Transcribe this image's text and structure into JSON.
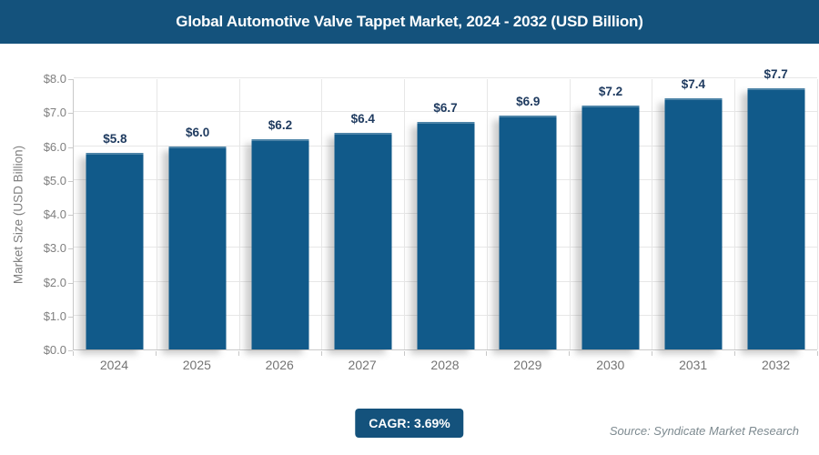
{
  "header": {
    "title": "Global Automotive Valve Tappet Market, 2024 - 2032 (USD Billion)"
  },
  "chart_data": {
    "type": "bar",
    "title": "Global Automotive Valve Tappet Market, 2024 - 2032 (USD Billion)",
    "categories": [
      "2024",
      "2025",
      "2026",
      "2027",
      "2028",
      "2029",
      "2030",
      "2031",
      "2032"
    ],
    "values": [
      5.8,
      6.0,
      6.2,
      6.4,
      6.7,
      6.9,
      7.2,
      7.4,
      7.7
    ],
    "value_labels": [
      "$5.8",
      "$6.0",
      "$6.2",
      "$6.4",
      "$6.7",
      "$6.9",
      "$7.2",
      "$7.4",
      "$7.7"
    ],
    "xlabel": "",
    "ylabel": "Market Size (USD Billion)",
    "ylim": [
      0,
      8
    ],
    "ytick_step": 1.0,
    "ytick_labels": [
      "$0.0",
      "$1.0",
      "$2.0",
      "$3.0",
      "$4.0",
      "$5.0",
      "$6.0",
      "$7.0",
      "$8.0"
    ],
    "grid": true,
    "legend_position": "none",
    "cagr": "3.69%"
  },
  "footer": {
    "cagr_label": "CAGR: 3.69%",
    "source": "Source: Syndicate Market Research"
  },
  "colors": {
    "header_bg": "#14527c",
    "bar": "#115a8a",
    "badge_bg": "#14527c",
    "value_label": "#1e3a5f",
    "grid": "#e7e7e7",
    "axis": "#c9c9c9",
    "ytick_text": "#7f7f7f",
    "xtick_text": "#747474",
    "source_text": "#7d8a90"
  }
}
